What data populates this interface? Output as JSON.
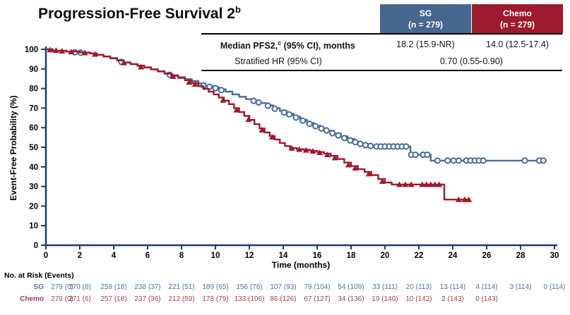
{
  "title": {
    "text": "Progression-Free Survival 2",
    "superscript": "b"
  },
  "colors": {
    "sg": "#4a6d96",
    "chemo": "#9c1b2e",
    "sg_header_bg": "#47678f",
    "chemo_header_bg": "#9c1b2e",
    "axis": "#1f3a66",
    "risk_sg_text": "#4f73a0",
    "risk_chemo_text": "#a04050"
  },
  "summary_table": {
    "columns": [
      {
        "name": "SG",
        "n_label": "(n = 279)"
      },
      {
        "name": "Chemo",
        "n_label": "(n = 279)"
      }
    ],
    "rows": [
      {
        "label_pre": "Median PFS2,",
        "label_sup": "c",
        "label_post": " (95% CI), months",
        "sg_value": "18.2 (15.9-NR)",
        "chemo_value": "14.0 (12.5-17.4)"
      },
      {
        "label": "Stratified HR (95% CI)",
        "combined_value": "0.70 (0.55-0.90)"
      }
    ]
  },
  "chart_data": {
    "type": "line",
    "subtype": "kaplan-meier-step",
    "xlabel": "Time (months)",
    "ylabel": "Event-Free Probability (%)",
    "xlim": [
      0,
      30
    ],
    "ylim": [
      0,
      100
    ],
    "xticks": [
      0,
      2,
      4,
      6,
      8,
      10,
      12,
      14,
      16,
      18,
      20,
      22,
      24,
      26,
      28,
      30
    ],
    "yticks": [
      0,
      10,
      20,
      30,
      40,
      50,
      60,
      70,
      80,
      90,
      100
    ],
    "grid": false,
    "legend": "none",
    "series": [
      {
        "name": "SG",
        "color": "#4a6d96",
        "marker": "circle",
        "median_months": 18.2,
        "steps": [
          [
            0,
            100
          ],
          [
            0.4,
            99.3
          ],
          [
            1.2,
            98.8
          ],
          [
            2.0,
            98.3
          ],
          [
            2.6,
            97.8
          ],
          [
            3.0,
            97.2
          ],
          [
            3.4,
            96.4
          ],
          [
            3.8,
            95.5
          ],
          [
            4.2,
            94.3
          ],
          [
            4.6,
            93.2
          ],
          [
            5.0,
            92.4
          ],
          [
            5.4,
            91.6
          ],
          [
            5.8,
            90.7
          ],
          [
            6.2,
            89.8
          ],
          [
            6.6,
            88.8
          ],
          [
            7.0,
            87.8
          ],
          [
            7.4,
            86.8
          ],
          [
            7.8,
            85.8
          ],
          [
            8.2,
            84.8
          ],
          [
            8.6,
            83.8
          ],
          [
            9.0,
            82.6
          ],
          [
            9.4,
            81.4
          ],
          [
            9.8,
            80.6
          ],
          [
            10.2,
            79.6
          ],
          [
            10.6,
            78.4
          ],
          [
            11.0,
            77.0
          ],
          [
            11.4,
            75.8
          ],
          [
            11.8,
            74.6
          ],
          [
            12.2,
            73.6
          ],
          [
            12.6,
            72.6
          ],
          [
            13.0,
            71.4
          ],
          [
            13.4,
            70.0
          ],
          [
            13.8,
            68.6
          ],
          [
            14.2,
            67.2
          ],
          [
            14.6,
            65.6
          ],
          [
            15.0,
            64.0
          ],
          [
            15.4,
            62.4
          ],
          [
            15.8,
            61.0
          ],
          [
            16.2,
            59.8
          ],
          [
            16.6,
            58.4
          ],
          [
            17.0,
            57.0
          ],
          [
            17.4,
            55.6
          ],
          [
            17.8,
            54.2
          ],
          [
            18.2,
            52.8
          ],
          [
            18.6,
            51.6
          ],
          [
            19.0,
            50.9
          ],
          [
            19.4,
            50.4
          ],
          [
            21.4,
            50.4
          ],
          [
            21.5,
            46.2
          ],
          [
            22.6,
            46.2
          ],
          [
            22.7,
            43.2
          ],
          [
            29.4,
            43.2
          ]
        ],
        "censors": [
          [
            1.7,
            98.5
          ],
          [
            2.05,
            98.3
          ],
          [
            4.45,
            93.6
          ],
          [
            7.3,
            87.0
          ],
          [
            9.3,
            81.5
          ],
          [
            9.65,
            80.9
          ],
          [
            10.0,
            80.2
          ],
          [
            10.35,
            79.2
          ],
          [
            12.25,
            73.7
          ],
          [
            12.55,
            72.9
          ],
          [
            13.1,
            71.2
          ],
          [
            13.5,
            69.7
          ],
          [
            14.05,
            67.8
          ],
          [
            14.35,
            66.8
          ],
          [
            14.75,
            65.2
          ],
          [
            15.15,
            63.6
          ],
          [
            15.55,
            62.0
          ],
          [
            15.9,
            60.8
          ],
          [
            16.25,
            59.6
          ],
          [
            16.55,
            58.6
          ],
          [
            16.9,
            57.2
          ],
          [
            17.25,
            56.0
          ],
          [
            17.6,
            54.7
          ],
          [
            17.95,
            53.5
          ],
          [
            18.25,
            52.6
          ],
          [
            18.55,
            51.7
          ],
          [
            18.85,
            51.1
          ],
          [
            19.15,
            50.7
          ],
          [
            19.5,
            50.4
          ],
          [
            19.75,
            50.4
          ],
          [
            20.0,
            50.4
          ],
          [
            20.25,
            50.4
          ],
          [
            20.5,
            50.4
          ],
          [
            20.75,
            50.4
          ],
          [
            21.0,
            50.4
          ],
          [
            21.25,
            50.4
          ],
          [
            21.55,
            46.2
          ],
          [
            21.8,
            46.2
          ],
          [
            22.25,
            46.2
          ],
          [
            22.5,
            46.2
          ],
          [
            23.1,
            43.2
          ],
          [
            23.7,
            43.2
          ],
          [
            24.05,
            43.2
          ],
          [
            24.35,
            43.2
          ],
          [
            24.8,
            43.2
          ],
          [
            25.05,
            43.2
          ],
          [
            25.3,
            43.2
          ],
          [
            25.55,
            43.2
          ],
          [
            25.8,
            43.2
          ],
          [
            28.25,
            43.2
          ],
          [
            29.1,
            43.2
          ],
          [
            29.35,
            43.2
          ]
        ]
      },
      {
        "name": "Chemo",
        "color": "#9c1b2e",
        "marker": "triangle",
        "median_months": 14.0,
        "steps": [
          [
            0,
            100
          ],
          [
            0.4,
            99.3
          ],
          [
            1.2,
            98.9
          ],
          [
            2.0,
            98.4
          ],
          [
            2.6,
            97.9
          ],
          [
            3.0,
            97.2
          ],
          [
            3.4,
            96.3
          ],
          [
            3.8,
            95.4
          ],
          [
            4.2,
            94.3
          ],
          [
            4.6,
            93.3
          ],
          [
            5.0,
            92.5
          ],
          [
            5.4,
            91.7
          ],
          [
            5.8,
            90.8
          ],
          [
            6.2,
            89.8
          ],
          [
            6.6,
            88.7
          ],
          [
            7.0,
            87.6
          ],
          [
            7.4,
            86.5
          ],
          [
            7.8,
            85.4
          ],
          [
            8.2,
            84.2
          ],
          [
            8.6,
            82.8
          ],
          [
            9.0,
            81.2
          ],
          [
            9.3,
            79.8
          ],
          [
            9.6,
            78.4
          ],
          [
            9.9,
            77.0
          ],
          [
            10.2,
            75.4
          ],
          [
            10.5,
            73.8
          ],
          [
            10.8,
            72.0
          ],
          [
            11.1,
            70.0
          ],
          [
            11.4,
            68.0
          ],
          [
            11.7,
            66.0
          ],
          [
            12.0,
            64.0
          ],
          [
            12.3,
            61.8
          ],
          [
            12.6,
            59.6
          ],
          [
            12.9,
            57.6
          ],
          [
            13.2,
            55.8
          ],
          [
            13.5,
            54.0
          ],
          [
            13.8,
            52.2
          ],
          [
            14.1,
            50.6
          ],
          [
            14.4,
            49.6
          ],
          [
            14.8,
            49.0
          ],
          [
            15.2,
            48.7
          ],
          [
            15.6,
            48.2
          ],
          [
            16.0,
            47.6
          ],
          [
            16.4,
            46.8
          ],
          [
            16.8,
            45.6
          ],
          [
            17.2,
            44.0
          ],
          [
            17.6,
            42.2
          ],
          [
            18.0,
            40.4
          ],
          [
            18.4,
            38.8
          ],
          [
            18.8,
            37.4
          ],
          [
            19.2,
            35.8
          ],
          [
            19.6,
            33.8
          ],
          [
            20.0,
            32.0
          ],
          [
            20.4,
            31.0
          ],
          [
            23.4,
            31.0
          ],
          [
            23.5,
            23.3
          ],
          [
            24.9,
            23.3
          ]
        ],
        "censors": [
          [
            0.25,
            99.7
          ],
          [
            0.6,
            99.4
          ],
          [
            0.95,
            99.1
          ],
          [
            1.5,
            98.7
          ],
          [
            2.3,
            98.2
          ],
          [
            2.9,
            97.5
          ],
          [
            4.6,
            93.1
          ],
          [
            5.6,
            91.0
          ],
          [
            7.5,
            86.2
          ],
          [
            8.45,
            83.2
          ],
          [
            8.8,
            82.2
          ],
          [
            10.45,
            74.0
          ],
          [
            11.25,
            69.0
          ],
          [
            11.95,
            64.2
          ],
          [
            12.75,
            58.8
          ],
          [
            13.35,
            55.2
          ],
          [
            14.5,
            49.5
          ],
          [
            14.95,
            48.9
          ],
          [
            15.35,
            48.5
          ],
          [
            15.75,
            48.0
          ],
          [
            16.15,
            47.3
          ],
          [
            16.6,
            46.2
          ],
          [
            17.05,
            44.6
          ],
          [
            17.85,
            41.0
          ],
          [
            18.25,
            39.4
          ],
          [
            19.05,
            36.4
          ],
          [
            19.85,
            32.6
          ],
          [
            20.85,
            31.0
          ],
          [
            21.2,
            31.0
          ],
          [
            21.55,
            31.0
          ],
          [
            22.2,
            31.0
          ],
          [
            22.45,
            31.0
          ],
          [
            22.7,
            31.0
          ],
          [
            22.95,
            31.0
          ],
          [
            23.2,
            31.0
          ],
          [
            24.35,
            23.3
          ],
          [
            24.7,
            23.3
          ],
          [
            24.95,
            23.3
          ]
        ]
      }
    ]
  },
  "risk_table": {
    "header": "No. at Risk (Events)",
    "rows": [
      {
        "label": "SG",
        "color": "#4f73a0",
        "values": [
          "279 (0)",
          "270 (8)",
          "259 (18)",
          "238 (37)",
          "221 (51)",
          "189 (65)",
          "156 (78)",
          "107 (93)",
          "79 (104)",
          "54 (109)",
          "33 (111)",
          "20 (113)",
          "13 (114)",
          "4 (114)",
          "3 (114)",
          "0 (114)"
        ]
      },
      {
        "label": "Chemo",
        "color": "#a04050",
        "values": [
          "279 (0)",
          "271 (6)",
          "257 (18)",
          "237 (36)",
          "212 (59)",
          "178 (79)",
          "133 (106)",
          "86 (126)",
          "67 (127)",
          "34 (136)",
          "19 (140)",
          "10 (142)",
          "2 (143)",
          "0 (143)"
        ]
      }
    ]
  }
}
